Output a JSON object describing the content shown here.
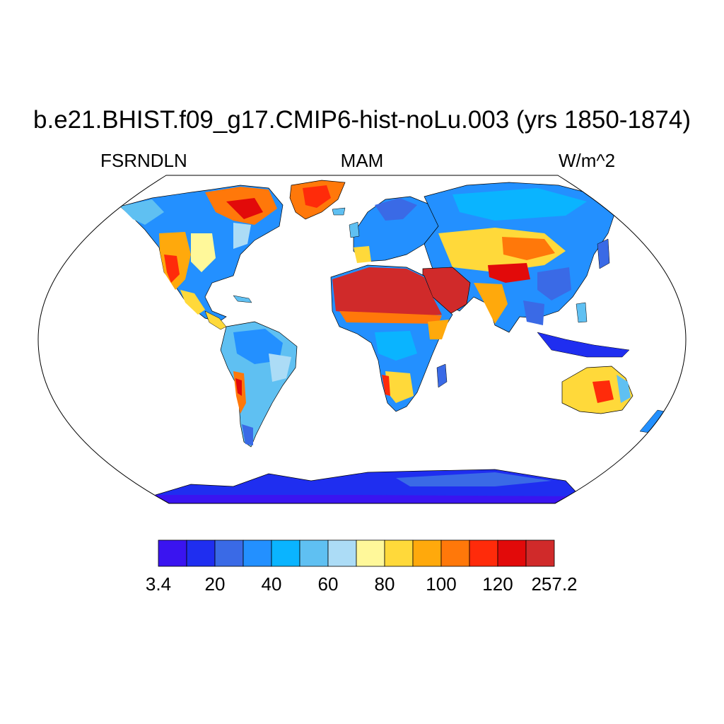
{
  "title": "b.e21.BHIST.f09_g17.CMIP6-hist-noLu.003 (yrs 1850-1874)",
  "variable": "FSRNDLN",
  "season": "MAM",
  "units": "W/m^2",
  "map": {
    "projection": "Robinson",
    "ocean_color": "#ffffff",
    "regions": [
      {
        "name": "Sahara / Arabia",
        "level": 13
      },
      {
        "name": "Greenland",
        "level": 11
      },
      {
        "name": "Canadian Arctic",
        "level": 10
      },
      {
        "name": "Australian interior",
        "level": 11
      },
      {
        "name": "Tibetan Plateau / Central Asia",
        "level": 11
      },
      {
        "name": "Andes / Atacama",
        "level": 10
      },
      {
        "name": "Namib / Kalahari",
        "level": 9
      },
      {
        "name": "Western US / Mexico",
        "level": 10
      },
      {
        "name": "India",
        "level": 8
      },
      {
        "name": "Amazon",
        "level": 4
      },
      {
        "name": "Central Africa",
        "level": 4
      },
      {
        "name": "Siberia",
        "level": 3
      },
      {
        "name": "Europe",
        "level": 4
      },
      {
        "name": "Southeast Asia",
        "level": 3
      },
      {
        "name": "Antarctica",
        "level": 1
      }
    ]
  },
  "colorbar": {
    "colors": [
      "#3a14f0",
      "#1f2ef0",
      "#3a6ae6",
      "#2390ff",
      "#0ab4ff",
      "#5fc0f2",
      "#acdcf6",
      "#fff89a",
      "#ffd93a",
      "#ffa90c",
      "#ff780a",
      "#ff2b0a",
      "#e20a0a",
      "#d02a2a"
    ],
    "labels": [
      "3.4",
      "20",
      "40",
      "60",
      "80",
      "100",
      "120",
      "257.2"
    ]
  }
}
